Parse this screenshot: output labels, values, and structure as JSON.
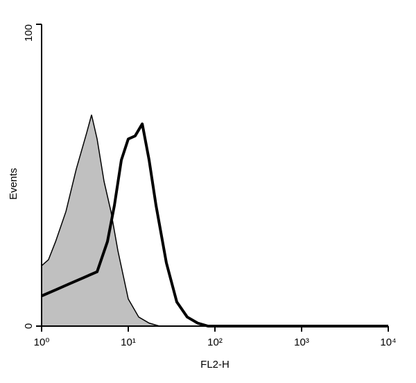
{
  "chart_data": {
    "type": "histogram-overlay",
    "xlabel": "FL2-H",
    "ylabel": "Events",
    "xscale": "log",
    "xlim": [
      1,
      10000
    ],
    "xticks": [
      {
        "value": 1,
        "label": "10⁰"
      },
      {
        "value": 10,
        "label": "10¹"
      },
      {
        "value": 100,
        "label": "10²"
      },
      {
        "value": 1000,
        "label": "10³"
      },
      {
        "value": 10000,
        "label": "10⁴"
      }
    ],
    "ylim": [
      0,
      100
    ],
    "yticks": [
      0,
      100
    ],
    "series": [
      {
        "color": "#c0c0c0",
        "style": "filled",
        "x": [
          1,
          1.2,
          1.45,
          1.91,
          2.51,
          3.31,
          3.77,
          4.37,
          5.25,
          6.31,
          7.59,
          10,
          13.2,
          17.4,
          22.9,
          10000
        ],
        "values": [
          20,
          22,
          28,
          38,
          52,
          64,
          70,
          62,
          48,
          38,
          25,
          9,
          3,
          1,
          0,
          0
        ]
      },
      {
        "color": "#000000",
        "style": "line",
        "x": [
          1,
          1.45,
          2.09,
          3.02,
          4.37,
          5.75,
          6.92,
          8.32,
          10,
          12,
          14.5,
          17.4,
          20.9,
          27.5,
          36.3,
          47.9,
          63.1,
          83.2,
          10000
        ],
        "values": [
          10,
          12,
          14,
          16,
          18,
          28,
          40,
          55,
          62,
          63,
          67,
          55,
          40,
          21,
          8,
          3,
          1,
          0,
          0
        ]
      }
    ]
  }
}
